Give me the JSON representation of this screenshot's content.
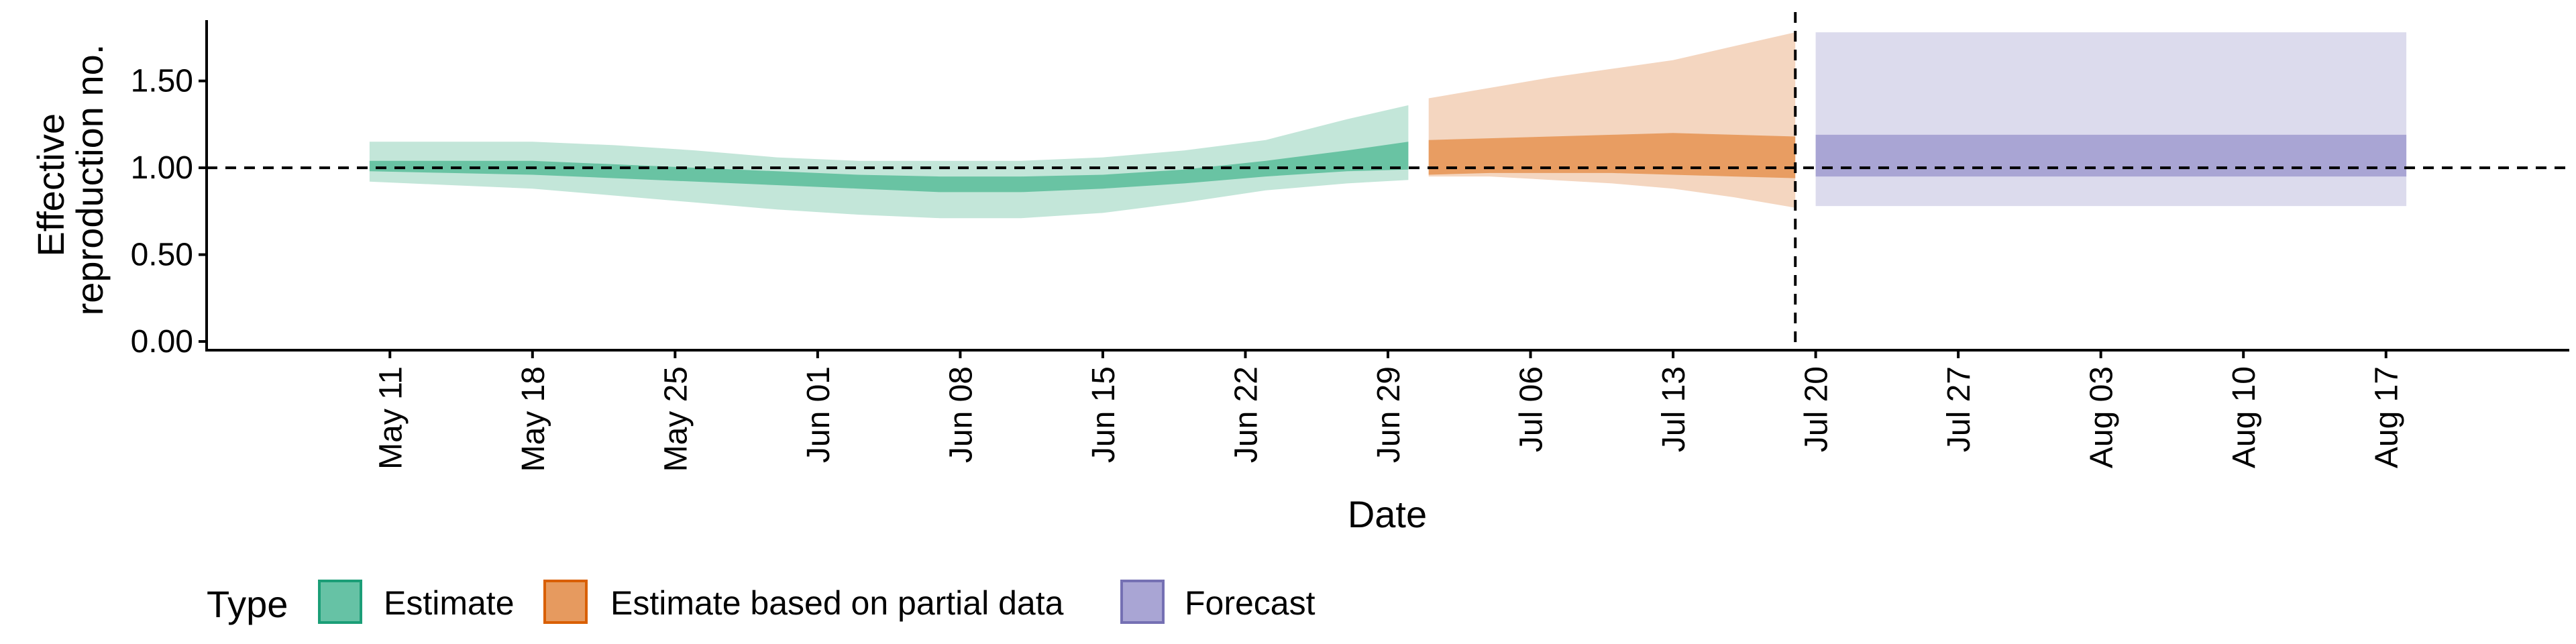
{
  "chart_data": {
    "type": "area",
    "title": "",
    "xlabel": "Date",
    "ylabel": [
      "Effective",
      "reproduction no."
    ],
    "ylim": [
      -0.05,
      1.85
    ],
    "xlim": [
      "2020-05-02",
      "2020-08-26"
    ],
    "y_ticks": [
      0.0,
      0.5,
      1.0,
      1.5
    ],
    "y_tick_labels": [
      "0.00",
      "0.50",
      "1.00",
      "1.50"
    ],
    "x_ticks": [
      "2020-05-11",
      "2020-05-18",
      "2020-05-25",
      "2020-06-01",
      "2020-06-08",
      "2020-06-15",
      "2020-06-22",
      "2020-06-29",
      "2020-07-06",
      "2020-07-13",
      "2020-07-20",
      "2020-07-27",
      "2020-08-03",
      "2020-08-10",
      "2020-08-17"
    ],
    "x_tick_labels": [
      "May 11",
      "May 18",
      "May 25",
      "Jun 01",
      "Jun 08",
      "Jun 15",
      "Jun 22",
      "Jun 29",
      "Jul 06",
      "Jul 13",
      "Jul 20",
      "Jul 27",
      "Aug 03",
      "Aug 10",
      "Aug 17"
    ],
    "reference_hline": 1.0,
    "reference_vline": "2020-07-19",
    "grid": false,
    "legend_position": "bottom",
    "legend": {
      "title": "Type",
      "entries": [
        {
          "label": "Estimate",
          "fill": "#66C2A5",
          "border": "#1B9E77"
        },
        {
          "label": "Estimate based on partial data",
          "fill": "#E69A5F",
          "border": "#D95F02"
        },
        {
          "label": "Forecast",
          "fill": "#A9A5D4",
          "border": "#7570B3"
        }
      ]
    },
    "series": [
      {
        "name": "Estimate",
        "colors": {
          "outer": "#C3E6D9",
          "inner": "#69C3A3"
        },
        "x": [
          "2020-05-10",
          "2020-05-14",
          "2020-05-18",
          "2020-05-22",
          "2020-05-26",
          "2020-05-30",
          "2020-06-03",
          "2020-06-07",
          "2020-06-11",
          "2020-06-15",
          "2020-06-19",
          "2020-06-23",
          "2020-06-27",
          "2020-06-30"
        ],
        "outer_lower": [
          0.92,
          0.9,
          0.88,
          0.84,
          0.8,
          0.76,
          0.73,
          0.71,
          0.71,
          0.74,
          0.8,
          0.87,
          0.91,
          0.93
        ],
        "outer_upper": [
          1.15,
          1.15,
          1.15,
          1.13,
          1.1,
          1.06,
          1.04,
          1.04,
          1.04,
          1.06,
          1.1,
          1.16,
          1.28,
          1.36
        ],
        "inner_lower": [
          0.98,
          0.97,
          0.96,
          0.94,
          0.92,
          0.9,
          0.88,
          0.86,
          0.86,
          0.88,
          0.91,
          0.95,
          0.98,
          0.99
        ],
        "inner_upper": [
          1.04,
          1.04,
          1.04,
          1.02,
          1.0,
          0.98,
          0.96,
          0.95,
          0.95,
          0.96,
          0.99,
          1.04,
          1.1,
          1.15
        ]
      },
      {
        "name": "Estimate based on partial data",
        "colors": {
          "outer": "#F4D6C0",
          "inner": "#E89D62"
        },
        "x": [
          "2020-07-01",
          "2020-07-04",
          "2020-07-07",
          "2020-07-10",
          "2020-07-13",
          "2020-07-16",
          "2020-07-19"
        ],
        "outer_lower": [
          0.95,
          0.95,
          0.93,
          0.91,
          0.88,
          0.83,
          0.77
        ],
        "outer_upper": [
          1.4,
          1.46,
          1.52,
          1.57,
          1.62,
          1.7,
          1.78
        ],
        "inner_lower": [
          0.96,
          0.97,
          0.97,
          0.97,
          0.96,
          0.95,
          0.94
        ],
        "inner_upper": [
          1.16,
          1.17,
          1.18,
          1.19,
          1.2,
          1.19,
          1.18
        ]
      },
      {
        "name": "Forecast",
        "colors": {
          "outer": "#DCDBED",
          "inner": "#A9A5D4"
        },
        "x": [
          "2020-07-20",
          "2020-08-18"
        ],
        "outer_lower": [
          0.78,
          0.78
        ],
        "outer_upper": [
          1.78,
          1.78
        ],
        "inner_lower": [
          0.95,
          0.95
        ],
        "inner_upper": [
          1.19,
          1.19
        ]
      }
    ]
  }
}
